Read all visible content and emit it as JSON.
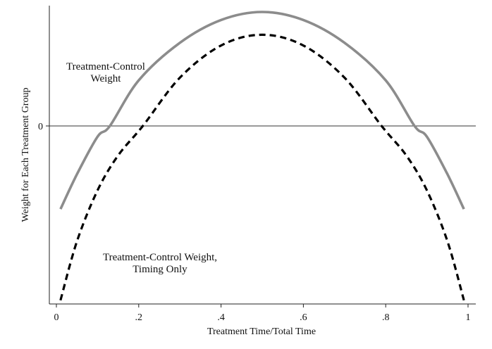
{
  "chart_data": {
    "type": "line",
    "xlabel": "Treatment Time/Total Time",
    "ylabel": "Weight for Each Treatment Group",
    "xlim": [
      0,
      1
    ],
    "ylim": [
      -1.37,
      0.85
    ],
    "x_ticks": [
      {
        "value": 0,
        "label": "0"
      },
      {
        "value": 0.2,
        "label": ".2"
      },
      {
        "value": 0.4,
        "label": ".4"
      },
      {
        "value": 0.6,
        "label": ".6"
      },
      {
        "value": 0.8,
        "label": ".8"
      },
      {
        "value": 1,
        "label": "1"
      }
    ],
    "y_ticks": [
      {
        "value": 0,
        "label": "0"
      }
    ],
    "reference_line_y": 0,
    "grid": false,
    "series": [
      {
        "name": "Treatment-Control Weight",
        "style": "solid",
        "color": "#8c8c8c",
        "x": [
          0.01,
          0.05,
          0.1,
          0.13,
          0.2,
          0.3,
          0.4,
          0.5,
          0.6,
          0.7,
          0.8,
          0.87,
          0.9,
          0.95,
          0.99
        ],
        "y": [
          -0.62,
          -0.36,
          -0.08,
          0.0,
          0.34,
          0.62,
          0.79,
          0.85,
          0.79,
          0.62,
          0.34,
          0.0,
          -0.08,
          -0.36,
          -0.62
        ]
      },
      {
        "name": "Treatment-Control Weight, Timing Only",
        "style": "dashed",
        "color": "#000000",
        "x": [
          0.01,
          0.05,
          0.1,
          0.15,
          0.21,
          0.3,
          0.4,
          0.5,
          0.6,
          0.7,
          0.79,
          0.85,
          0.9,
          0.95,
          0.99
        ],
        "y": [
          -1.3,
          -0.86,
          -0.48,
          -0.22,
          0.0,
          0.36,
          0.6,
          0.68,
          0.6,
          0.36,
          0.0,
          -0.22,
          -0.48,
          -0.86,
          -1.3
        ]
      }
    ],
    "annotations": [
      {
        "series": 0,
        "lines": [
          "Treatment-Control",
          "Weight"
        ]
      },
      {
        "series": 1,
        "lines": [
          "Treatment-Control Weight,",
          "Timing Only"
        ]
      }
    ]
  }
}
